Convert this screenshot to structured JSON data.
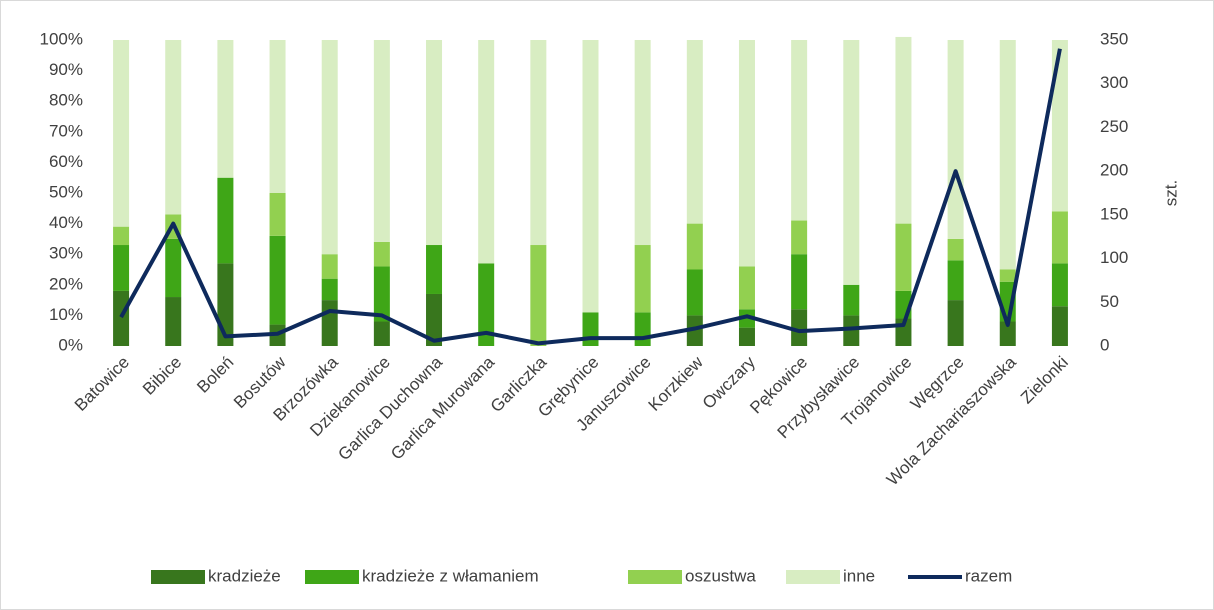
{
  "chart_data": {
    "type": "bar",
    "stacked": true,
    "categories": [
      "Batowice",
      "Bibice",
      "Boleń",
      "Bosutów",
      "Brzozówka",
      "Dziekanowice",
      "Garlica Duchowna",
      "Garlica Murowana",
      "Garliczka",
      "Grębynice",
      "Januszowice",
      "Korzkiew",
      "Owczary",
      "Pękowice",
      "Przybysławice",
      "Trojanowice",
      "Węgrzce",
      "Wola Zachariaszowska",
      "Zielonki"
    ],
    "series": [
      {
        "name": "kradzieże",
        "color": "#38761d",
        "values": [
          18,
          16,
          27,
          7,
          15,
          8,
          17,
          0,
          0,
          0,
          0,
          10,
          6,
          12,
          10,
          9,
          15,
          8,
          13
        ]
      },
      {
        "name": "kradzieże z włamaniem",
        "color": "#3fa617",
        "values": [
          15,
          19,
          28,
          29,
          7,
          18,
          16,
          27,
          0,
          11,
          11,
          15,
          6,
          18,
          10,
          9,
          13,
          13,
          14
        ]
      },
      {
        "name": "oszustwa",
        "color": "#92d050",
        "values": [
          6,
          8,
          0,
          14,
          8,
          8,
          0,
          0,
          33,
          0,
          22,
          15,
          14,
          11,
          0,
          22,
          7,
          4,
          17
        ]
      },
      {
        "name": "inne",
        "color": "#d8edc2",
        "values": [
          61,
          57,
          45,
          50,
          70,
          66,
          67,
          73,
          67,
          89,
          67,
          60,
          74,
          59,
          80,
          61,
          65,
          75,
          56
        ]
      },
      {
        "name": "razem",
        "type": "line",
        "axis": "y2",
        "color": "#0e2a5c",
        "values": [
          33,
          140,
          11,
          14,
          40,
          35,
          6,
          15,
          3,
          9,
          9,
          20,
          34,
          17,
          20,
          24,
          200,
          24,
          340
        ]
      }
    ],
    "ylim": [
      0,
      100
    ],
    "yticks": [
      {
        "value": 0,
        "label": "0%"
      },
      {
        "value": 10,
        "label": "10%"
      },
      {
        "value": 20,
        "label": "20%"
      },
      {
        "value": 30,
        "label": "30%"
      },
      {
        "value": 40,
        "label": "40%"
      },
      {
        "value": 50,
        "label": "50%"
      },
      {
        "value": 60,
        "label": "60%"
      },
      {
        "value": 70,
        "label": "70%"
      },
      {
        "value": 80,
        "label": "80%"
      },
      {
        "value": 90,
        "label": "90%"
      },
      {
        "value": 100,
        "label": "100%"
      }
    ],
    "y2lim": [
      0,
      350
    ],
    "y2ticks": [
      0,
      50,
      100,
      150,
      200,
      250,
      300,
      350
    ],
    "y2label": "szt.",
    "legend": "bottom"
  }
}
